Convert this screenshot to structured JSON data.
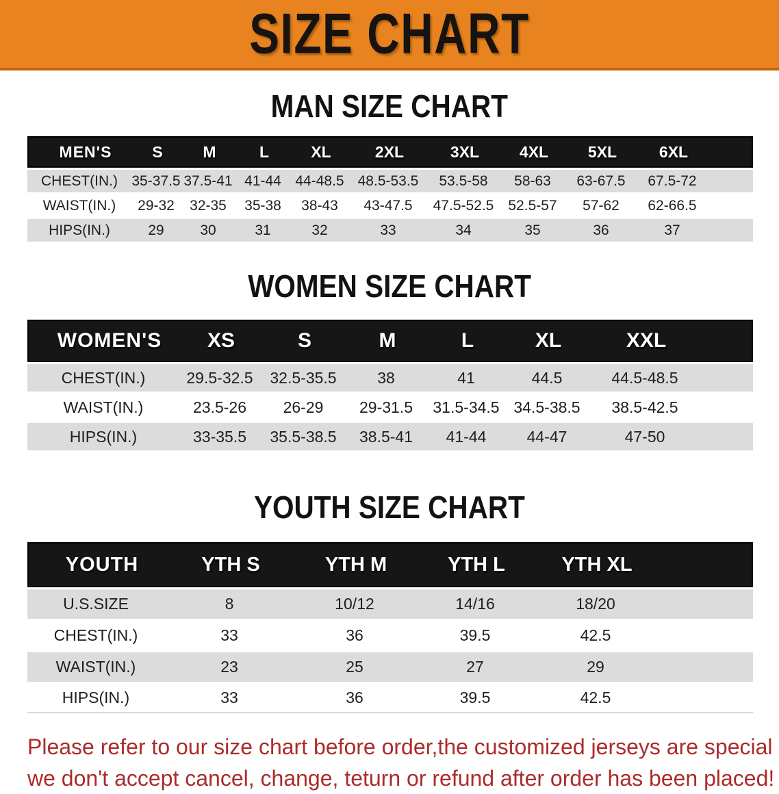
{
  "banner": {
    "title": "SIZE CHART",
    "bg_color": "#E8831F",
    "text_color": "#161310"
  },
  "colors": {
    "table_header_bg": "#161616",
    "row_stripe": "#DCDCDC",
    "disclaimer_red": "#AC2B2B"
  },
  "sections": [
    {
      "title": "MAN SIZE CHART",
      "table": {
        "label_header": "MEN'S",
        "size_headers": [
          "S",
          "M",
          "L",
          "XL",
          "2XL",
          "3XL",
          "4XL",
          "5XL",
          "6XL"
        ],
        "rows": [
          {
            "label": "CHEST(IN.)",
            "values": [
              "35-37.5",
              "37.5-41",
              "41-44",
              "44-48.5",
              "48.5-53.5",
              "53.5-58",
              "58-63",
              "63-67.5",
              "67.5-72"
            ]
          },
          {
            "label": "WAIST(IN.)",
            "values": [
              "29-32",
              "32-35",
              "35-38",
              "38-43",
              "43-47.5",
              "47.5-52.5",
              "52.5-57",
              "57-62",
              "62-66.5"
            ]
          },
          {
            "label": "HIPS(IN.)",
            "values": [
              "29",
              "30",
              "31",
              "32",
              "33",
              "34",
              "35",
              "36",
              "37"
            ]
          }
        ]
      }
    },
    {
      "title": "WOMEN SIZE CHART",
      "table": {
        "label_header": "WOMEN'S",
        "size_headers": [
          "XS",
          "S",
          "M",
          "L",
          "XL",
          "XXL"
        ],
        "rows": [
          {
            "label": "CHEST(IN.)",
            "values": [
              "29.5-32.5",
              "32.5-35.5",
              "38",
              "41",
              "44.5",
              "44.5-48.5"
            ]
          },
          {
            "label": "WAIST(IN.)",
            "values": [
              "23.5-26",
              "26-29",
              "29-31.5",
              "31.5-34.5",
              "34.5-38.5",
              "38.5-42.5"
            ]
          },
          {
            "label": "HIPS(IN.)",
            "values": [
              "33-35.5",
              "35.5-38.5",
              "38.5-41",
              "41-44",
              "44-47",
              "47-50"
            ]
          }
        ]
      }
    },
    {
      "title": "YOUTH SIZE CHART",
      "table": {
        "label_header": "YOUTH",
        "size_headers": [
          "YTH S",
          "YTH M",
          "YTH L",
          "YTH XL"
        ],
        "rows": [
          {
            "label": "U.S.SIZE",
            "values": [
              "8",
              "10/12",
              "14/16",
              "18/20"
            ]
          },
          {
            "label": "CHEST(IN.)",
            "values": [
              "33",
              "36",
              "39.5",
              "42.5"
            ]
          },
          {
            "label": "WAIST(IN.)",
            "values": [
              "23",
              "25",
              "27",
              "29"
            ]
          },
          {
            "label": "HIPS(IN.)",
            "values": [
              "33",
              "36",
              "39.5",
              "42.5"
            ]
          }
        ]
      }
    }
  ],
  "disclaimer": {
    "line1": "Please refer to our size chart before order,the customized jerseys are special products,",
    "line2": "we don't accept cancel, change, teturn or refund after order has been placed!"
  }
}
